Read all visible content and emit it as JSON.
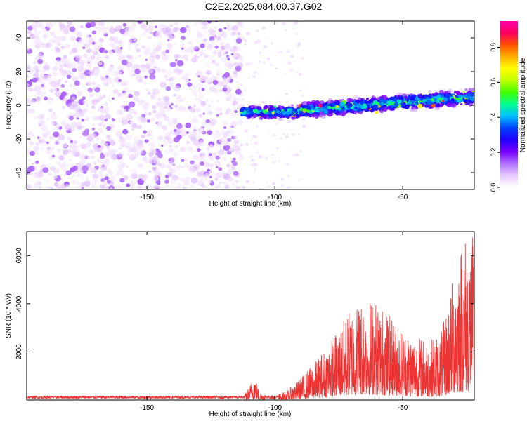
{
  "title": "C2E2.2025.084.00.37.G02",
  "chart_data": [
    {
      "type": "heatmap",
      "title": "C2E2.2025.084.00.37.G02",
      "xlabel": "Height of straight line (km)",
      "ylabel": "Frequency (Hz)",
      "xlim": [
        -197,
        -22
      ],
      "ylim": [
        -50,
        50
      ],
      "x_ticks": [
        -150,
        -100,
        -50
      ],
      "y_ticks": [
        -40,
        -20,
        0,
        20,
        40
      ],
      "tick_labels_x": [
        "-150",
        "-100",
        "-50"
      ],
      "tick_labels_y": [
        "-40",
        "-20",
        "0",
        "20",
        "40"
      ],
      "colorbar": {
        "label": "Normalized spectral amplitude",
        "range": [
          0,
          0.95
        ],
        "ticks": [
          0.0,
          0.2,
          0.4,
          0.6,
          0.8
        ],
        "tick_labels": [
          "0.0",
          "0.2",
          "0.4",
          "0.6",
          "0.8"
        ],
        "colors": [
          "#ffffff",
          "#e6c8ff",
          "#b070ff",
          "#7a00ff",
          "#2000ff",
          "#0040ff",
          "#00c0ff",
          "#00ff90",
          "#40ff00",
          "#c0ff00",
          "#ffff00",
          "#ffb000",
          "#ff5000",
          "#ff0060",
          "#ff00b0"
        ]
      },
      "regions": [
        {
          "name": "noise",
          "x_range": [
            -197,
            -113
          ],
          "freq_range": [
            -50,
            50
          ],
          "amplitude": 0.1
        },
        {
          "name": "signal-start",
          "x_range": [
            -113,
            -90
          ],
          "freq_center": -4,
          "freq_width": 8,
          "amplitude": 0.4
        },
        {
          "name": "signal-track",
          "x_range": [
            -90,
            -22
          ],
          "freq_center_start": -3,
          "freq_center_end": 5,
          "freq_width": 10,
          "amplitude": 0.5
        }
      ]
    },
    {
      "type": "line",
      "xlabel": "Height of straight line (km)",
      "ylabel": "SNR (10 * v/v)",
      "xlim": [
        -197,
        -22
      ],
      "ylim": [
        0,
        7000
      ],
      "x_ticks": [
        -150,
        -100,
        -50
      ],
      "y_ticks": [
        2000,
        4000,
        6000
      ],
      "tick_labels_x": [
        "-150",
        "-100",
        "-50"
      ],
      "tick_labels_y": [
        "2000",
        "4000",
        "6000"
      ],
      "series": [
        {
          "color": "#ee3333",
          "envelope": [
            {
              "x": -197,
              "y": 200
            },
            {
              "x": -150,
              "y": 200
            },
            {
              "x": -112,
              "y": 200
            },
            {
              "x": -110,
              "y": 550
            },
            {
              "x": -108,
              "y": 1100
            },
            {
              "x": -106,
              "y": 300
            },
            {
              "x": -100,
              "y": 200
            },
            {
              "x": -95,
              "y": 400
            },
            {
              "x": -90,
              "y": 900
            },
            {
              "x": -85,
              "y": 1500
            },
            {
              "x": -80,
              "y": 2200
            },
            {
              "x": -75,
              "y": 3000
            },
            {
              "x": -70,
              "y": 3900
            },
            {
              "x": -65,
              "y": 4300
            },
            {
              "x": -60,
              "y": 4200
            },
            {
              "x": -55,
              "y": 3500
            },
            {
              "x": -50,
              "y": 3000
            },
            {
              "x": -45,
              "y": 2700
            },
            {
              "x": -40,
              "y": 2500
            },
            {
              "x": -35,
              "y": 2800
            },
            {
              "x": -32,
              "y": 4200
            },
            {
              "x": -29,
              "y": 6000
            },
            {
              "x": -26,
              "y": 7000
            },
            {
              "x": -22,
              "y": 6800
            }
          ]
        }
      ]
    }
  ]
}
